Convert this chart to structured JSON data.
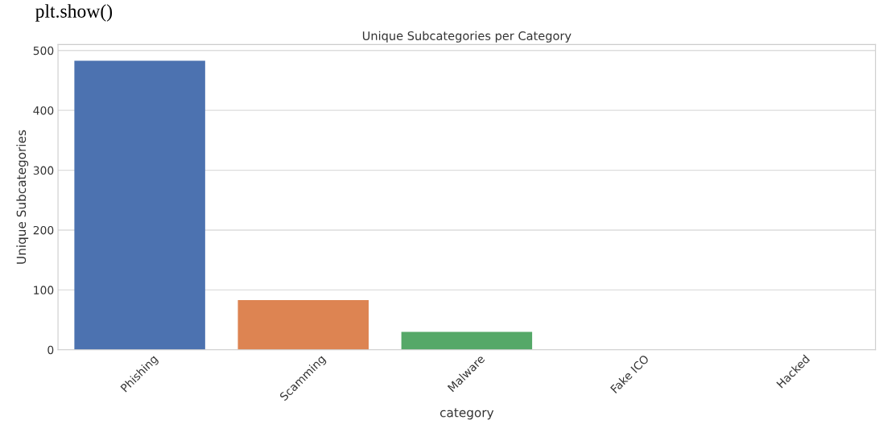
{
  "chart_data": {
    "type": "bar",
    "title": "Unique Subcategories per Category",
    "xlabel": "category",
    "ylabel": "Unique Subcategories",
    "annotations": [
      "plt.show()"
    ],
    "categories": [
      "Phishing",
      "Scamming",
      "Malware",
      "Fake ICO",
      "Hacked"
    ],
    "values": [
      483,
      83,
      30,
      null,
      null
    ],
    "colors": [
      "#4c72b0",
      "#dd8452",
      "#55a868",
      "#c44e52",
      "#8172b3"
    ],
    "ylim": [
      0,
      510
    ],
    "yticks": [
      0,
      100,
      200,
      300,
      400,
      500
    ],
    "grid": "y"
  }
}
